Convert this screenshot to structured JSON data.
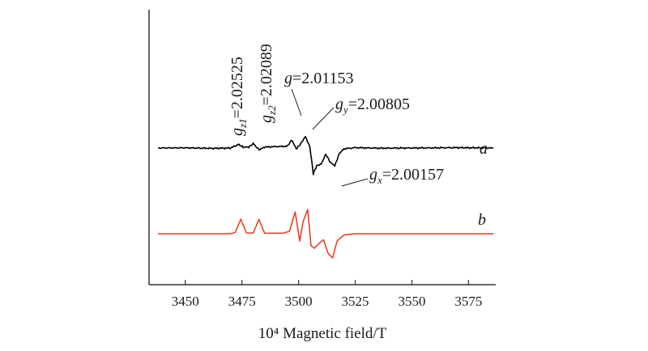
{
  "chart_data": {
    "type": "line",
    "xlabel": "10⁴ Magnetic field/T",
    "xlim": [
      3434,
      3587
    ],
    "x_ticks": [
      3450,
      3475,
      3500,
      3525,
      3550,
      3575
    ],
    "y_axis_visible": false,
    "grid": false,
    "legend": "none",
    "series": [
      {
        "name": "a",
        "color": "#000000",
        "x": [
          3438,
          3450,
          3462,
          3470,
          3473.5,
          3475.5,
          3478,
          3480,
          3482.5,
          3485,
          3490,
          3495,
          3497,
          3499,
          3501,
          3503,
          3505,
          3506.5,
          3508,
          3510,
          3512,
          3514,
          3516,
          3518,
          3520,
          3525,
          3535,
          3550,
          3570,
          3586
        ],
        "y": [
          0.0,
          0.01,
          -0.02,
          0.0,
          0.2,
          0.05,
          0.05,
          0.25,
          -0.1,
          0.05,
          0.08,
          0.1,
          0.45,
          -0.05,
          0.25,
          0.65,
          0.05,
          -1.45,
          -1.0,
          -0.9,
          -0.35,
          -0.8,
          -1.0,
          -0.3,
          -0.05,
          0.02,
          -0.01,
          0.0,
          0.02,
          0.0
        ]
      },
      {
        "name": "b",
        "color": "#e8391e",
        "x": [
          3438,
          3470,
          3472,
          3474.5,
          3477,
          3480,
          3482.5,
          3485,
          3493,
          3496,
          3498.5,
          3500.5,
          3502,
          3504,
          3505.5,
          3507,
          3509,
          3511,
          3513,
          3515,
          3517,
          3520,
          3525,
          3586
        ],
        "y": [
          0.0,
          0.0,
          0.05,
          0.6,
          0.03,
          0.03,
          0.6,
          0.02,
          0.02,
          0.1,
          0.9,
          -0.3,
          0.5,
          1.0,
          -0.5,
          -0.6,
          -0.4,
          -0.25,
          -0.8,
          -1.0,
          -0.3,
          -0.05,
          0.0,
          0.0
        ]
      }
    ],
    "trace_labels": [
      "a",
      "b"
    ],
    "annotations": [
      {
        "g": "g",
        "sub": "z1",
        "value": "=2.02525",
        "x": 3475
      },
      {
        "g": "g",
        "sub": "z2",
        "value": "=2.02089",
        "x": 3482
      },
      {
        "g": "g",
        "sub": "",
        "value": "=2.01153",
        "x": 3499
      },
      {
        "g": "g",
        "sub": "y",
        "value": "=2.00805",
        "x": 3503.5
      },
      {
        "g": "g",
        "sub": "x",
        "value": "=2.00157",
        "x": 3515
      }
    ]
  }
}
